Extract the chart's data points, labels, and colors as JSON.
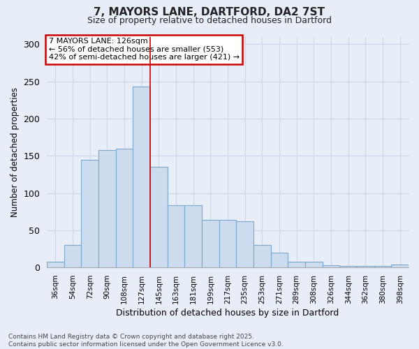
{
  "title1": "7, MAYORS LANE, DARTFORD, DA2 7ST",
  "title2": "Size of property relative to detached houses in Dartford",
  "xlabel": "Distribution of detached houses by size in Dartford",
  "ylabel": "Number of detached properties",
  "categories": [
    "36sqm",
    "54sqm",
    "72sqm",
    "90sqm",
    "108sqm",
    "127sqm",
    "145sqm",
    "163sqm",
    "181sqm",
    "199sqm",
    "217sqm",
    "235sqm",
    "253sqm",
    "271sqm",
    "289sqm",
    "308sqm",
    "326sqm",
    "344sqm",
    "362sqm",
    "380sqm",
    "398sqm"
  ],
  "values": [
    8,
    30,
    145,
    158,
    160,
    243,
    135,
    84,
    84,
    64,
    64,
    62,
    30,
    20,
    8,
    8,
    3,
    2,
    2,
    2,
    4
  ],
  "bar_color": "#ccdcee",
  "bar_edge_color": "#7ba7cc",
  "highlight_index": 5,
  "highlight_line_color": "#cc0000",
  "annotation_text": "7 MAYORS LANE: 126sqm\n← 56% of detached houses are smaller (553)\n42% of semi-detached houses are larger (421) →",
  "annotation_box_color": "#ffffff",
  "annotation_box_edge": "#cc0000",
  "footnote": "Contains HM Land Registry data © Crown copyright and database right 2025.\nContains public sector information licensed under the Open Government Licence v3.0.",
  "background_color": "#e8eef8",
  "grid_color": "#d0d8e8",
  "ylim": [
    0,
    310
  ],
  "yticks": [
    0,
    50,
    100,
    150,
    200,
    250,
    300
  ]
}
